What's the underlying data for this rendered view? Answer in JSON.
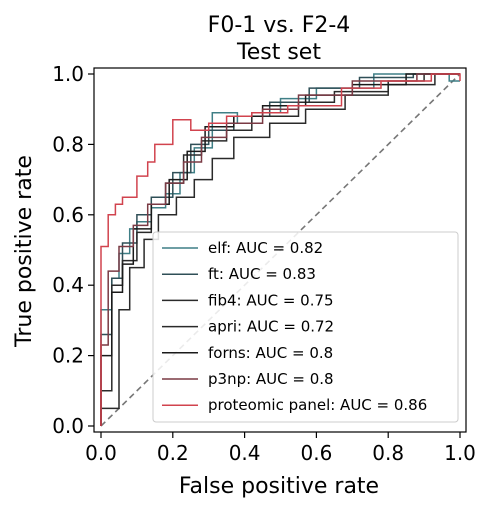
{
  "chart_data": {
    "type": "line",
    "title": [
      "F0-1 vs. F2-4",
      "Test set"
    ],
    "xlabel": "False positive rate",
    "ylabel": "True positive rate",
    "xlim": [
      0,
      1
    ],
    "ylim": [
      0,
      1
    ],
    "xticks": [
      "0.0",
      "0.2",
      "0.4",
      "0.6",
      "0.8",
      "1.0"
    ],
    "yticks": [
      "0.0",
      "0.2",
      "0.4",
      "0.6",
      "0.8",
      "1.0"
    ],
    "grid": false,
    "legend_position": "lower-right",
    "reference_line": {
      "style": "dashed",
      "color": "#777777",
      "from": [
        0,
        0
      ],
      "to": [
        1,
        1
      ]
    },
    "series": [
      {
        "name": "elf: AUC = 0.82",
        "color": "#3f7f86",
        "points": [
          [
            0,
            0
          ],
          [
            0,
            0.33
          ],
          [
            0.03,
            0.33
          ],
          [
            0.03,
            0.42
          ],
          [
            0.05,
            0.42
          ],
          [
            0.05,
            0.49
          ],
          [
            0.08,
            0.49
          ],
          [
            0.08,
            0.56
          ],
          [
            0.1,
            0.56
          ],
          [
            0.1,
            0.58
          ],
          [
            0.14,
            0.58
          ],
          [
            0.14,
            0.62
          ],
          [
            0.18,
            0.62
          ],
          [
            0.18,
            0.66
          ],
          [
            0.22,
            0.66
          ],
          [
            0.22,
            0.72
          ],
          [
            0.26,
            0.72
          ],
          [
            0.26,
            0.79
          ],
          [
            0.31,
            0.79
          ],
          [
            0.31,
            0.89
          ],
          [
            0.38,
            0.89
          ],
          [
            0.38,
            0.86
          ],
          [
            0.42,
            0.86
          ],
          [
            0.42,
            0.89
          ],
          [
            0.5,
            0.89
          ],
          [
            0.5,
            0.93
          ],
          [
            0.6,
            0.93
          ],
          [
            0.6,
            0.96
          ],
          [
            0.76,
            0.96
          ],
          [
            0.76,
            1.0
          ],
          [
            0.92,
            1.0
          ],
          [
            0.97,
            1.0
          ],
          [
            0.97,
            0.98
          ],
          [
            1.0,
            0.98
          ]
        ]
      },
      {
        "name": "ft: AUC = 0.83",
        "color": "#2f4f57",
        "points": [
          [
            0,
            0
          ],
          [
            0,
            0.26
          ],
          [
            0.03,
            0.26
          ],
          [
            0.03,
            0.42
          ],
          [
            0.06,
            0.42
          ],
          [
            0.06,
            0.52
          ],
          [
            0.1,
            0.52
          ],
          [
            0.1,
            0.6
          ],
          [
            0.14,
            0.6
          ],
          [
            0.14,
            0.65
          ],
          [
            0.2,
            0.65
          ],
          [
            0.2,
            0.72
          ],
          [
            0.25,
            0.72
          ],
          [
            0.25,
            0.8
          ],
          [
            0.3,
            0.8
          ],
          [
            0.3,
            0.84
          ],
          [
            0.37,
            0.84
          ],
          [
            0.37,
            0.88
          ],
          [
            0.47,
            0.88
          ],
          [
            0.47,
            0.92
          ],
          [
            0.58,
            0.92
          ],
          [
            0.58,
            0.96
          ],
          [
            0.72,
            0.96
          ],
          [
            0.72,
            0.99
          ],
          [
            0.87,
            0.99
          ],
          [
            0.87,
            1.0
          ],
          [
            1.0,
            1.0
          ]
        ]
      },
      {
        "name": "fib4: AUC = 0.75",
        "color": "#2a2a2a",
        "points": [
          [
            0,
            0
          ],
          [
            0,
            0.1
          ],
          [
            0.03,
            0.1
          ],
          [
            0.03,
            0.4
          ],
          [
            0.06,
            0.4
          ],
          [
            0.06,
            0.47
          ],
          [
            0.1,
            0.47
          ],
          [
            0.1,
            0.55
          ],
          [
            0.14,
            0.55
          ],
          [
            0.14,
            0.63
          ],
          [
            0.18,
            0.63
          ],
          [
            0.18,
            0.69
          ],
          [
            0.23,
            0.69
          ],
          [
            0.23,
            0.77
          ],
          [
            0.28,
            0.77
          ],
          [
            0.28,
            0.81
          ],
          [
            0.35,
            0.81
          ],
          [
            0.35,
            0.84
          ],
          [
            0.42,
            0.84
          ],
          [
            0.42,
            0.88
          ],
          [
            0.55,
            0.88
          ],
          [
            0.55,
            0.92
          ],
          [
            0.65,
            0.92
          ],
          [
            0.65,
            0.95
          ],
          [
            0.8,
            0.95
          ],
          [
            0.8,
            0.98
          ],
          [
            0.9,
            0.98
          ],
          [
            0.9,
            1.0
          ],
          [
            1.0,
            1.0
          ]
        ]
      },
      {
        "name": "apri: AUC = 0.72",
        "color": "#2a2a2a",
        "points": [
          [
            0,
            0
          ],
          [
            0,
            0.05
          ],
          [
            0.05,
            0.05
          ],
          [
            0.05,
            0.33
          ],
          [
            0.08,
            0.33
          ],
          [
            0.08,
            0.45
          ],
          [
            0.12,
            0.45
          ],
          [
            0.12,
            0.53
          ],
          [
            0.16,
            0.53
          ],
          [
            0.16,
            0.6
          ],
          [
            0.21,
            0.6
          ],
          [
            0.21,
            0.65
          ],
          [
            0.26,
            0.65
          ],
          [
            0.26,
            0.7
          ],
          [
            0.31,
            0.7
          ],
          [
            0.31,
            0.76
          ],
          [
            0.37,
            0.76
          ],
          [
            0.37,
            0.82
          ],
          [
            0.47,
            0.82
          ],
          [
            0.47,
            0.86
          ],
          [
            0.57,
            0.86
          ],
          [
            0.57,
            0.9
          ],
          [
            0.68,
            0.9
          ],
          [
            0.68,
            0.94
          ],
          [
            0.8,
            0.94
          ],
          [
            0.8,
            0.97
          ],
          [
            0.93,
            0.97
          ],
          [
            0.93,
            1.0
          ],
          [
            1.0,
            1.0
          ]
        ]
      },
      {
        "name": "forns: AUC = 0.8",
        "color": "#1a1a1a",
        "points": [
          [
            0,
            0
          ],
          [
            0,
            0.2
          ],
          [
            0.03,
            0.2
          ],
          [
            0.03,
            0.38
          ],
          [
            0.06,
            0.38
          ],
          [
            0.06,
            0.46
          ],
          [
            0.09,
            0.46
          ],
          [
            0.09,
            0.56
          ],
          [
            0.14,
            0.56
          ],
          [
            0.14,
            0.63
          ],
          [
            0.19,
            0.63
          ],
          [
            0.19,
            0.7
          ],
          [
            0.24,
            0.7
          ],
          [
            0.24,
            0.78
          ],
          [
            0.29,
            0.78
          ],
          [
            0.29,
            0.85
          ],
          [
            0.37,
            0.85
          ],
          [
            0.37,
            0.88
          ],
          [
            0.45,
            0.88
          ],
          [
            0.45,
            0.91
          ],
          [
            0.57,
            0.91
          ],
          [
            0.57,
            0.94
          ],
          [
            0.7,
            0.94
          ],
          [
            0.7,
            0.97
          ],
          [
            0.85,
            0.97
          ],
          [
            0.85,
            1.0
          ],
          [
            1.0,
            1.0
          ]
        ]
      },
      {
        "name": "p3np: AUC = 0.8",
        "color": "#7a3a44",
        "points": [
          [
            0,
            0
          ],
          [
            0,
            0.23
          ],
          [
            0.02,
            0.23
          ],
          [
            0.02,
            0.44
          ],
          [
            0.05,
            0.44
          ],
          [
            0.05,
            0.51
          ],
          [
            0.09,
            0.51
          ],
          [
            0.09,
            0.57
          ],
          [
            0.13,
            0.57
          ],
          [
            0.13,
            0.63
          ],
          [
            0.18,
            0.63
          ],
          [
            0.18,
            0.69
          ],
          [
            0.23,
            0.69
          ],
          [
            0.23,
            0.75
          ],
          [
            0.28,
            0.75
          ],
          [
            0.28,
            0.82
          ],
          [
            0.35,
            0.82
          ],
          [
            0.35,
            0.86
          ],
          [
            0.45,
            0.86
          ],
          [
            0.45,
            0.9
          ],
          [
            0.55,
            0.9
          ],
          [
            0.55,
            0.94
          ],
          [
            0.7,
            0.94
          ],
          [
            0.7,
            0.98
          ],
          [
            0.88,
            0.98
          ],
          [
            0.88,
            1.0
          ],
          [
            1.0,
            1.0
          ]
        ]
      },
      {
        "name": "proteomic panel: AUC = 0.86",
        "color": "#d1434e",
        "points": [
          [
            0,
            0
          ],
          [
            0,
            0.51
          ],
          [
            0.02,
            0.51
          ],
          [
            0.02,
            0.6
          ],
          [
            0.04,
            0.6
          ],
          [
            0.04,
            0.63
          ],
          [
            0.06,
            0.63
          ],
          [
            0.06,
            0.65
          ],
          [
            0.1,
            0.65
          ],
          [
            0.1,
            0.71
          ],
          [
            0.13,
            0.71
          ],
          [
            0.13,
            0.75
          ],
          [
            0.15,
            0.75
          ],
          [
            0.15,
            0.8
          ],
          [
            0.2,
            0.8
          ],
          [
            0.2,
            0.87
          ],
          [
            0.25,
            0.87
          ],
          [
            0.25,
            0.84
          ],
          [
            0.3,
            0.84
          ],
          [
            0.3,
            0.86
          ],
          [
            0.35,
            0.86
          ],
          [
            0.35,
            0.88
          ],
          [
            0.42,
            0.88
          ],
          [
            0.42,
            0.89
          ],
          [
            0.52,
            0.89
          ],
          [
            0.52,
            0.91
          ],
          [
            0.67,
            0.91
          ],
          [
            0.67,
            0.96
          ],
          [
            0.78,
            0.96
          ],
          [
            0.78,
            0.98
          ],
          [
            0.92,
            0.98
          ],
          [
            0.92,
            1.0
          ],
          [
            1.0,
            1.0
          ],
          [
            1.0,
            0.98
          ]
        ]
      }
    ]
  }
}
